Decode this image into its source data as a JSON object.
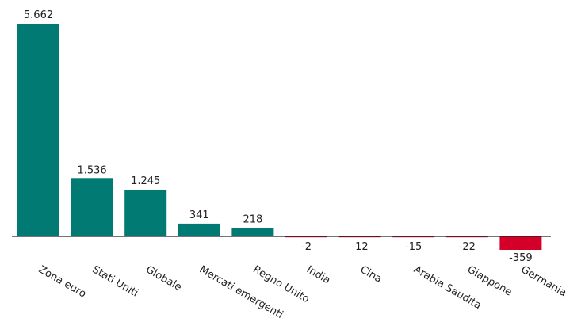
{
  "chart_data": {
    "type": "bar",
    "categories": [
      "Zona euro",
      "Stati Uniti",
      "Globale",
      "Mercati emergenti",
      "Regno Unito",
      "India",
      "Cina",
      "Arabia Saudita",
      "Giappone",
      "Germania"
    ],
    "values": [
      5662,
      1536,
      1245,
      341,
      218,
      -2,
      -12,
      -15,
      -22,
      -359
    ],
    "value_labels": [
      "5.662",
      "1.536",
      "1.245",
      "341",
      "218",
      "-2",
      "-12",
      "-15",
      "-22",
      "-359"
    ],
    "colors": {
      "positive": "#007a72",
      "negative": "#d4002a",
      "axis": "#222222"
    },
    "ylim": [
      -400,
      5662
    ],
    "grid": false,
    "title": "",
    "xlabel": "",
    "ylabel": ""
  }
}
